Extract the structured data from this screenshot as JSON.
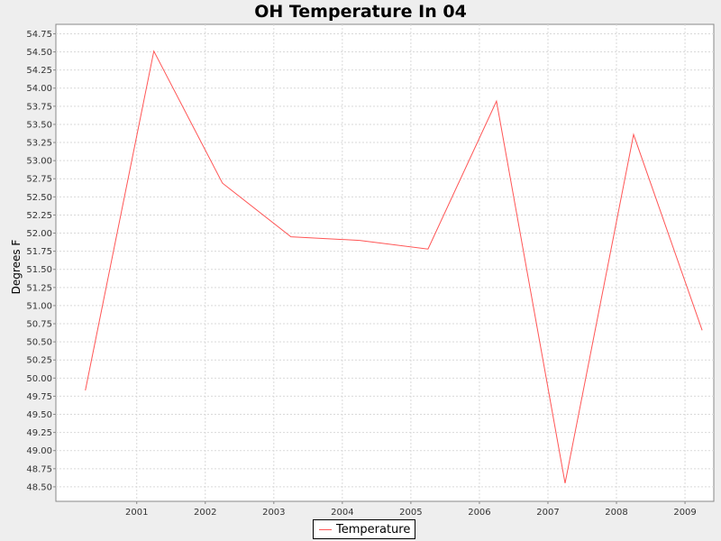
{
  "chart_data": {
    "type": "line",
    "title": "OH Temperature In 04",
    "xlabel": "",
    "ylabel": "Degrees F",
    "x": [
      2000.25,
      2001.25,
      2002.25,
      2003.25,
      2004.25,
      2005.25,
      2006.25,
      2007.25,
      2008.25,
      2009.25
    ],
    "series": [
      {
        "name": "Temperature",
        "color": "#ff5555",
        "values": [
          49.83,
          54.51,
          52.69,
          51.95,
          51.9,
          51.78,
          53.82,
          48.55,
          53.36,
          50.66
        ]
      }
    ],
    "xlim": [
      1999.82,
      2009.42
    ],
    "ylim": [
      48.3,
      54.88
    ],
    "x_ticks": [
      "2001",
      "2002",
      "2003",
      "2004",
      "2005",
      "2006",
      "2007",
      "2008",
      "2009"
    ],
    "y_ticks": [
      "48.50",
      "48.75",
      "49.00",
      "49.25",
      "49.50",
      "49.75",
      "50.00",
      "50.25",
      "50.50",
      "50.75",
      "51.00",
      "51.25",
      "51.50",
      "51.75",
      "52.00",
      "52.25",
      "52.50",
      "52.75",
      "53.00",
      "53.25",
      "53.50",
      "53.75",
      "54.00",
      "54.25",
      "54.50",
      "54.75"
    ],
    "grid": true,
    "legend": "bottom-center"
  }
}
